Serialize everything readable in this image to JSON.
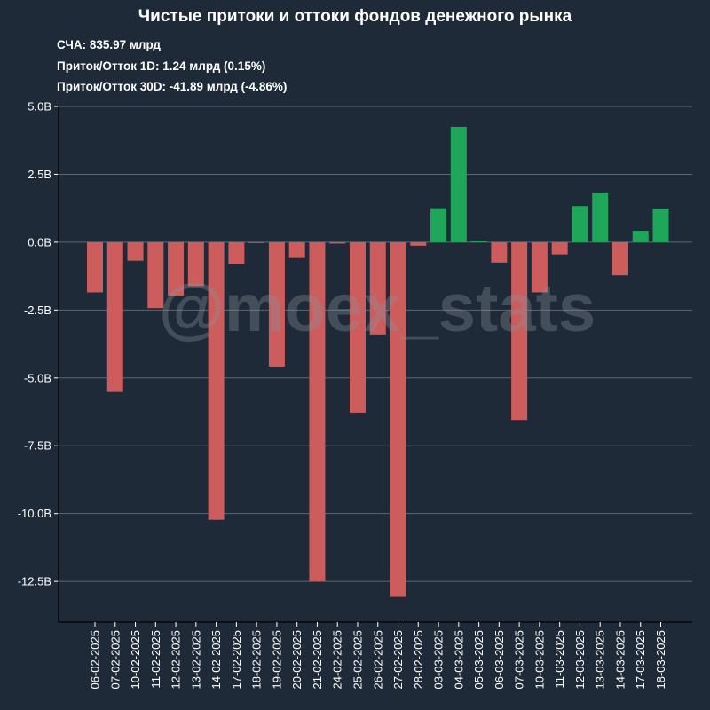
{
  "chart_data": {
    "type": "bar",
    "title": "Чистые притоки и оттоки фондов денежного рынка",
    "stats": {
      "aum": "СЧА: 835.97 млрд",
      "flow_1d": "Приток/Отток 1D: 1.24 млрд (0.15%)",
      "flow_30d": "Приток/Отток 30D: -41.89 млрд (-4.86%)"
    },
    "watermark": "@moex_stats",
    "categories": [
      "06-02-2025",
      "07-02-2025",
      "10-02-2025",
      "11-02-2025",
      "12-02-2025",
      "13-02-2025",
      "14-02-2025",
      "17-02-2025",
      "18-02-2025",
      "19-02-2025",
      "20-02-2025",
      "21-02-2025",
      "24-02-2025",
      "25-02-2025",
      "26-02-2025",
      "27-02-2025",
      "28-02-2025",
      "03-03-2025",
      "04-03-2025",
      "05-03-2025",
      "06-03-2025",
      "07-03-2025",
      "10-03-2025",
      "11-03-2025",
      "12-03-2025",
      "13-03-2025",
      "14-03-2025",
      "17-03-2025",
      "18-03-2025"
    ],
    "values": [
      -1.85,
      -5.52,
      -0.68,
      -2.43,
      -1.97,
      -1.62,
      -10.23,
      -0.8,
      -0.03,
      -4.58,
      -0.58,
      -12.5,
      -0.05,
      -6.28,
      -3.4,
      -13.07,
      -0.13,
      1.25,
      4.25,
      0.05,
      -0.75,
      -6.55,
      -1.85,
      -0.45,
      1.33,
      1.83,
      -1.22,
      0.42,
      1.24
    ],
    "ylim": [
      -14.0,
      5.0
    ],
    "yticks": [
      5.0,
      2.5,
      0.0,
      -2.5,
      -5.0,
      -7.5,
      -10.0,
      -12.5
    ],
    "ytick_labels": [
      "5.0B",
      "2.5B",
      "0.0B",
      "-2.5B",
      "-5.0B",
      "-7.5B",
      "-10.0B",
      "-12.5B"
    ],
    "grid": true,
    "colors": {
      "positive": "#1ea65a",
      "negative": "#cd5c5c",
      "background": "#1f2a38",
      "grid": "#5d6673"
    }
  }
}
